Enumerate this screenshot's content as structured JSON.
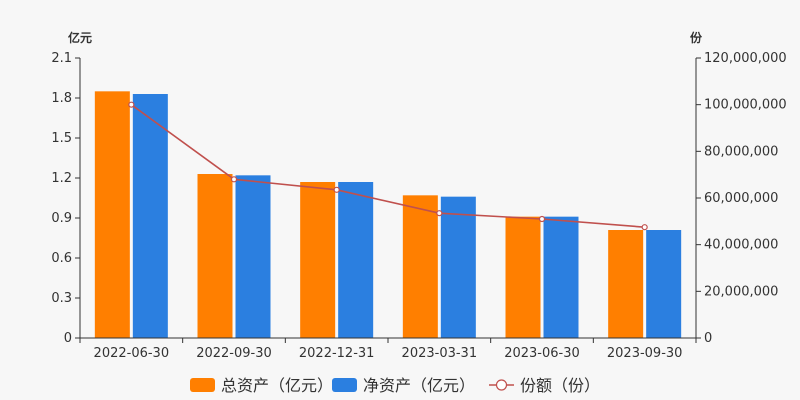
{
  "chart_data": {
    "type": "bar",
    "categories": [
      "2022-06-30",
      "2022-09-30",
      "2022-12-31",
      "2023-03-31",
      "2023-06-30",
      "2023-09-30"
    ],
    "series": [
      {
        "name": "总资产（亿元）",
        "type": "bar",
        "axis": "left",
        "color": "#ff7f00",
        "values": [
          1.85,
          1.23,
          1.17,
          1.07,
          0.91,
          0.81
        ]
      },
      {
        "name": "净资产（亿元）",
        "type": "bar",
        "axis": "left",
        "color": "#2b7fe0",
        "values": [
          1.83,
          1.22,
          1.17,
          1.06,
          0.91,
          0.81
        ]
      },
      {
        "name": "份额（份）",
        "type": "line",
        "axis": "right",
        "color": "#c0504d",
        "values": [
          100000000,
          68000000,
          63500000,
          53500000,
          51000000,
          47500000
        ]
      }
    ],
    "y_left": {
      "label": "亿元",
      "ylim": [
        0,
        2.1
      ],
      "ticks": [
        0,
        0.3,
        0.6,
        0.9,
        1.2,
        1.5,
        1.8,
        2.1
      ],
      "tick_labels": [
        "0",
        "0.3",
        "0.6",
        "0.9",
        "1.2",
        "1.5",
        "1.8",
        "2.1"
      ]
    },
    "y_right": {
      "label": "份",
      "ylim": [
        0,
        120000000
      ],
      "ticks": [
        0,
        20000000,
        40000000,
        60000000,
        80000000,
        100000000,
        120000000
      ],
      "tick_labels": [
        "0",
        "20,000,000",
        "40,000,000",
        "60,000,000",
        "80,000,000",
        "100,000,000",
        "120,000,000"
      ]
    },
    "legend_position": "bottom",
    "grid": false
  }
}
